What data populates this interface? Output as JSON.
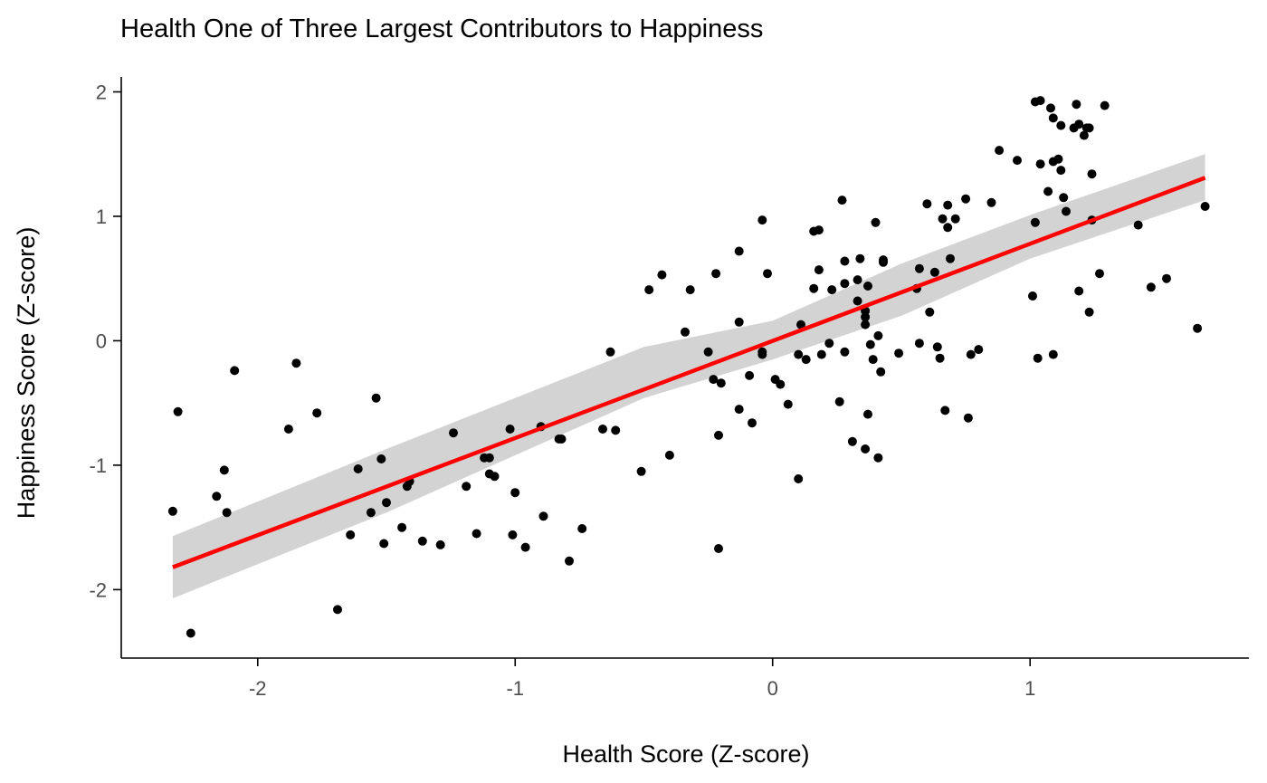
{
  "chart_data": {
    "type": "scatter",
    "title": "Health One of Three Largest Contributors to Happiness",
    "xlabel": "Health Score (Z-score)",
    "ylabel": "Happiness Score (Z-score)",
    "xlim": [
      -2.53,
      1.85
    ],
    "ylim": [
      -2.55,
      2.12
    ],
    "xticks": [
      -2,
      -1,
      0,
      1
    ],
    "xtick_labels": [
      "-2",
      "-1",
      "0",
      "1"
    ],
    "yticks": [
      -2,
      -1,
      0,
      1,
      2
    ],
    "ytick_labels": [
      "-2",
      "-1",
      "0",
      "1",
      "2"
    ],
    "grid": false,
    "legend": "none",
    "colors": {
      "points": "#000000",
      "fit_line": "#ff0000",
      "confidence_band": "#d3d3d3"
    },
    "fit": {
      "method": "linear",
      "x_range": [
        -2.33,
        1.68
      ],
      "line": [
        [
          -2.33,
          -1.82
        ],
        [
          1.68,
          1.31
        ]
      ],
      "band_upper": [
        [
          -2.33,
          -1.57
        ],
        [
          -1.5,
          -0.87
        ],
        [
          -0.5,
          -0.05
        ],
        [
          0.0,
          0.16
        ],
        [
          0.5,
          0.62
        ],
        [
          1.0,
          1.01
        ],
        [
          1.68,
          1.5
        ]
      ],
      "band_lower": [
        [
          -2.33,
          -2.07
        ],
        [
          -1.5,
          -1.38
        ],
        [
          -0.5,
          -0.46
        ],
        [
          0.0,
          -0.15
        ],
        [
          0.5,
          0.2
        ],
        [
          1.0,
          0.66
        ],
        [
          1.68,
          1.13
        ]
      ]
    },
    "points": [
      [
        -2.33,
        -1.37
      ],
      [
        -2.31,
        -0.57
      ],
      [
        -2.26,
        -2.35
      ],
      [
        -2.16,
        -1.25
      ],
      [
        -2.13,
        -1.04
      ],
      [
        -2.12,
        -1.38
      ],
      [
        -2.09,
        -0.24
      ],
      [
        -1.88,
        -0.71
      ],
      [
        -1.85,
        -0.18
      ],
      [
        -1.77,
        -0.58
      ],
      [
        -1.69,
        -2.16
      ],
      [
        -1.64,
        -1.56
      ],
      [
        -1.61,
        -1.03
      ],
      [
        -1.56,
        -1.38
      ],
      [
        -1.54,
        -0.46
      ],
      [
        -1.52,
        -0.95
      ],
      [
        -1.51,
        -1.63
      ],
      [
        -1.5,
        -1.3
      ],
      [
        -1.44,
        -1.5
      ],
      [
        -1.42,
        -1.17
      ],
      [
        -1.41,
        -1.13
      ],
      [
        -1.36,
        -1.61
      ],
      [
        -1.29,
        -1.64
      ],
      [
        -1.24,
        -0.74
      ],
      [
        -1.19,
        -1.17
      ],
      [
        -1.15,
        -1.55
      ],
      [
        -1.12,
        -0.94
      ],
      [
        -1.1,
        -0.94
      ],
      [
        -1.1,
        -1.07
      ],
      [
        -1.08,
        -1.09
      ],
      [
        -1.02,
        -0.71
      ],
      [
        -1.01,
        -1.56
      ],
      [
        -1.0,
        -1.22
      ],
      [
        -0.96,
        -1.66
      ],
      [
        -0.9,
        -0.69
      ],
      [
        -0.89,
        -1.41
      ],
      [
        -0.83,
        -0.79
      ],
      [
        -0.82,
        -0.79
      ],
      [
        -0.79,
        -1.77
      ],
      [
        -0.74,
        -1.51
      ],
      [
        -0.66,
        -0.71
      ],
      [
        -0.63,
        -0.09
      ],
      [
        -0.61,
        -0.72
      ],
      [
        -0.51,
        -1.05
      ],
      [
        -0.48,
        0.41
      ],
      [
        -0.43,
        0.53
      ],
      [
        -0.4,
        -0.92
      ],
      [
        -0.34,
        0.07
      ],
      [
        -0.32,
        0.41
      ],
      [
        -0.25,
        -0.09
      ],
      [
        -0.23,
        -0.31
      ],
      [
        -0.22,
        0.54
      ],
      [
        -0.21,
        -0.76
      ],
      [
        -0.21,
        -1.67
      ],
      [
        -0.2,
        -0.34
      ],
      [
        -0.13,
        0.72
      ],
      [
        -0.13,
        0.15
      ],
      [
        -0.13,
        -0.55
      ],
      [
        -0.09,
        -0.28
      ],
      [
        -0.08,
        -0.66
      ],
      [
        -0.04,
        0.97
      ],
      [
        -0.04,
        -0.09
      ],
      [
        -0.04,
        -0.11
      ],
      [
        -0.02,
        0.54
      ],
      [
        0.01,
        -0.31
      ],
      [
        0.03,
        -0.35
      ],
      [
        0.06,
        -0.51
      ],
      [
        0.1,
        -0.11
      ],
      [
        0.1,
        -1.11
      ],
      [
        0.11,
        0.13
      ],
      [
        0.13,
        -0.15
      ],
      [
        0.16,
        0.42
      ],
      [
        0.16,
        0.88
      ],
      [
        0.18,
        0.89
      ],
      [
        0.18,
        0.57
      ],
      [
        0.19,
        -0.11
      ],
      [
        0.22,
        -0.02
      ],
      [
        0.23,
        0.41
      ],
      [
        0.26,
        -0.49
      ],
      [
        0.27,
        1.13
      ],
      [
        0.28,
        0.46
      ],
      [
        0.28,
        0.64
      ],
      [
        0.28,
        -0.09
      ],
      [
        0.31,
        -0.81
      ],
      [
        0.33,
        0.49
      ],
      [
        0.33,
        0.32
      ],
      [
        0.34,
        0.66
      ],
      [
        0.36,
        -0.87
      ],
      [
        0.36,
        0.13
      ],
      [
        0.36,
        0.19
      ],
      [
        0.36,
        0.24
      ],
      [
        0.37,
        -0.59
      ],
      [
        0.37,
        0.44
      ],
      [
        0.38,
        -0.03
      ],
      [
        0.39,
        -0.15
      ],
      [
        0.4,
        0.95
      ],
      [
        0.41,
        -0.94
      ],
      [
        0.41,
        0.04
      ],
      [
        0.42,
        -0.25
      ],
      [
        0.43,
        0.63
      ],
      [
        0.43,
        0.65
      ],
      [
        0.49,
        -0.1
      ],
      [
        0.56,
        0.42
      ],
      [
        0.57,
        0.58
      ],
      [
        0.57,
        -0.02
      ],
      [
        0.6,
        1.1
      ],
      [
        0.61,
        0.23
      ],
      [
        0.63,
        0.55
      ],
      [
        0.64,
        -0.05
      ],
      [
        0.65,
        -0.14
      ],
      [
        0.66,
        0.98
      ],
      [
        0.67,
        -0.56
      ],
      [
        0.68,
        1.09
      ],
      [
        0.68,
        0.91
      ],
      [
        0.69,
        0.66
      ],
      [
        0.71,
        0.98
      ],
      [
        0.75,
        1.14
      ],
      [
        0.76,
        -0.62
      ],
      [
        0.77,
        -0.11
      ],
      [
        0.8,
        -0.07
      ],
      [
        0.85,
        1.11
      ],
      [
        0.88,
        1.53
      ],
      [
        0.95,
        1.45
      ],
      [
        1.01,
        0.36
      ],
      [
        1.02,
        1.92
      ],
      [
        1.02,
        0.95
      ],
      [
        1.03,
        -0.14
      ],
      [
        1.04,
        1.93
      ],
      [
        1.04,
        1.42
      ],
      [
        1.07,
        1.2
      ],
      [
        1.08,
        1.87
      ],
      [
        1.09,
        1.44
      ],
      [
        1.09,
        1.79
      ],
      [
        1.09,
        -0.11
      ],
      [
        1.11,
        1.46
      ],
      [
        1.12,
        1.73
      ],
      [
        1.12,
        1.37
      ],
      [
        1.13,
        1.15
      ],
      [
        1.14,
        1.04
      ],
      [
        1.17,
        1.71
      ],
      [
        1.18,
        1.9
      ],
      [
        1.19,
        1.74
      ],
      [
        1.19,
        0.4
      ],
      [
        1.21,
        1.65
      ],
      [
        1.22,
        1.71
      ],
      [
        1.23,
        1.71
      ],
      [
        1.23,
        0.23
      ],
      [
        1.24,
        1.34
      ],
      [
        1.24,
        0.97
      ],
      [
        1.27,
        0.54
      ],
      [
        1.29,
        1.89
      ],
      [
        1.42,
        0.93
      ],
      [
        1.47,
        0.43
      ],
      [
        1.53,
        0.5
      ],
      [
        1.65,
        0.1
      ],
      [
        1.68,
        1.08
      ]
    ]
  }
}
